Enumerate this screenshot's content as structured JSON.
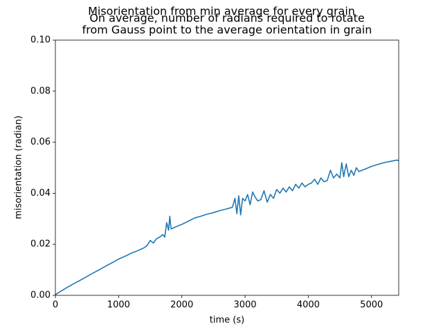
{
  "chart_data": {
    "type": "line",
    "suptitle": "Misorientation from min average for every grain",
    "title": [
      "On average, number of radians required to rotate",
      "from Gauss point to the average orientation in grain"
    ],
    "xlabel": "time (s)",
    "ylabel": "misorientation (radian)",
    "xlim": [
      0,
      5430
    ],
    "ylim": [
      0,
      0.1
    ],
    "xticks": [
      0,
      1000,
      2000,
      3000,
      4000,
      5000
    ],
    "yticks": [
      {
        "value": 0,
        "label": "0.00"
      },
      {
        "value": 0.02,
        "label": "0.02"
      },
      {
        "value": 0.04,
        "label": "0.04"
      },
      {
        "value": 0.06,
        "label": "0.06"
      },
      {
        "value": 0.08,
        "label": "0.08"
      },
      {
        "value": 0.1,
        "label": "0.10"
      }
    ],
    "grid": false,
    "series": [
      {
        "color": "#1f77b4",
        "x": [
          0,
          100,
          200,
          300,
          400,
          500,
          600,
          700,
          800,
          900,
          1000,
          1100,
          1200,
          1300,
          1400,
          1450,
          1500,
          1550,
          1600,
          1650,
          1700,
          1730,
          1760,
          1790,
          1810,
          1830,
          1900,
          2000,
          2100,
          2200,
          2300,
          2400,
          2500,
          2600,
          2700,
          2800,
          2840,
          2870,
          2900,
          2930,
          2960,
          3000,
          3040,
          3080,
          3120,
          3160,
          3200,
          3250,
          3300,
          3350,
          3400,
          3450,
          3500,
          3550,
          3600,
          3650,
          3700,
          3750,
          3800,
          3850,
          3900,
          3950,
          4000,
          4050,
          4100,
          4150,
          4200,
          4250,
          4300,
          4350,
          4400,
          4450,
          4500,
          4530,
          4560,
          4600,
          4640,
          4680,
          4720,
          4760,
          4800,
          4900,
          5000,
          5100,
          5200,
          5300,
          5400,
          5430
        ],
        "values": [
          0.0003,
          0.0018,
          0.0033,
          0.0047,
          0.006,
          0.0074,
          0.0088,
          0.0101,
          0.0115,
          0.0128,
          0.0142,
          0.0153,
          0.0165,
          0.0175,
          0.0186,
          0.0195,
          0.0215,
          0.0205,
          0.0222,
          0.0228,
          0.0238,
          0.0228,
          0.0285,
          0.0255,
          0.031,
          0.026,
          0.0268,
          0.0278,
          0.029,
          0.0303,
          0.031,
          0.0318,
          0.0324,
          0.0332,
          0.0338,
          0.0345,
          0.038,
          0.032,
          0.039,
          0.0315,
          0.038,
          0.037,
          0.0395,
          0.0355,
          0.0405,
          0.0385,
          0.037,
          0.0375,
          0.041,
          0.0365,
          0.0395,
          0.038,
          0.0415,
          0.04,
          0.042,
          0.0405,
          0.0425,
          0.041,
          0.0435,
          0.042,
          0.044,
          0.0425,
          0.0435,
          0.044,
          0.0455,
          0.0435,
          0.046,
          0.0445,
          0.045,
          0.049,
          0.046,
          0.0475,
          0.046,
          0.052,
          0.0465,
          0.0515,
          0.0465,
          0.049,
          0.047,
          0.05,
          0.0485,
          0.0495,
          0.0505,
          0.0513,
          0.052,
          0.0525,
          0.053,
          0.0528
        ]
      }
    ]
  }
}
